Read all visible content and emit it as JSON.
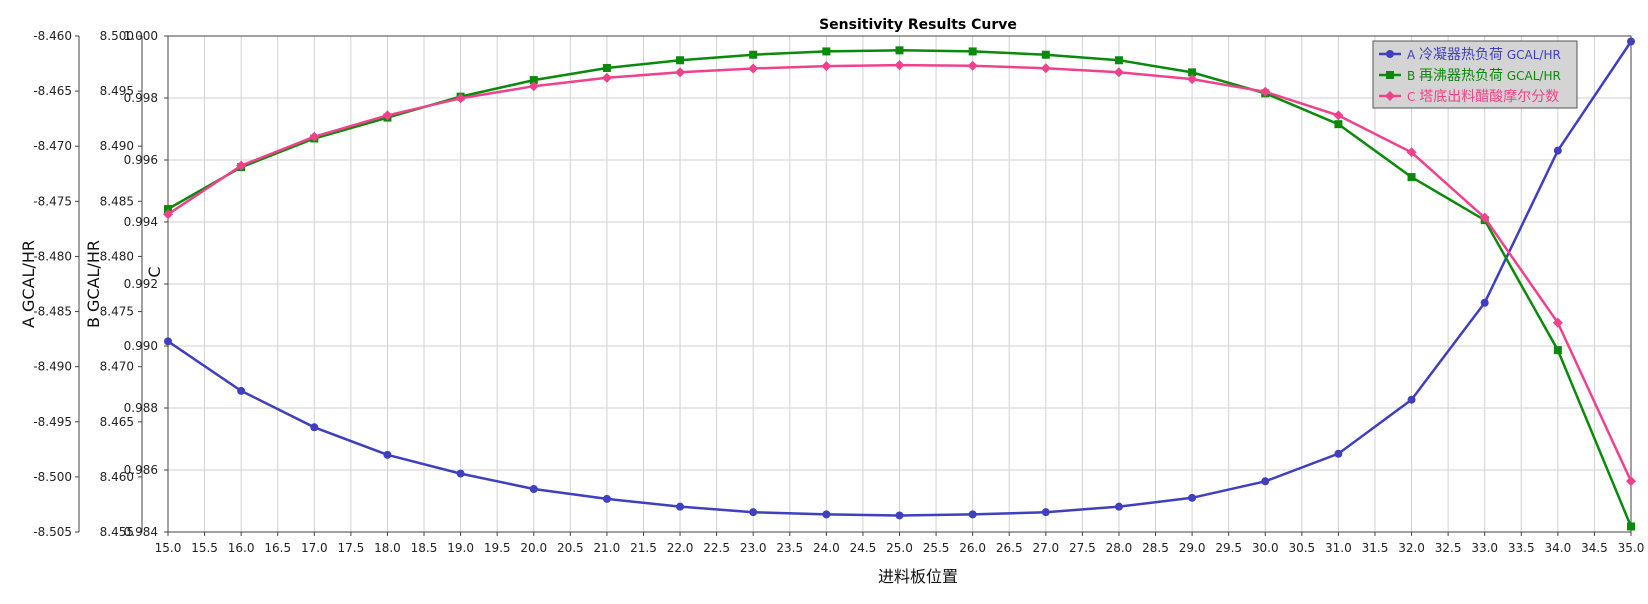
{
  "chart_data": {
    "type": "line",
    "title": "Sensitivity Results Curve",
    "xlabel": "进料板位置",
    "xlim": [
      15.0,
      35.0
    ],
    "x_tick_step": 0.5,
    "x": [
      15,
      16,
      17,
      18,
      19,
      20,
      21,
      22,
      23,
      24,
      25,
      26,
      27,
      28,
      29,
      30,
      31,
      32,
      33,
      34,
      35
    ],
    "legend_position": "top-right",
    "grid": true,
    "axes": [
      {
        "id": "A",
        "label": "A GCAL/HR",
        "ylim": [
          -8.505,
          -8.46
        ],
        "ticks": [
          "-8.460",
          "-8.465",
          "-8.470",
          "-8.475",
          "-8.480",
          "-8.485",
          "-8.490",
          "-8.495",
          "-8.500",
          "-8.505"
        ]
      },
      {
        "id": "B",
        "label": "B GCAL/HR",
        "ylim": [
          8.455,
          8.5
        ],
        "ticks": [
          "8.500",
          "8.495",
          "8.490",
          "8.485",
          "8.480",
          "8.475",
          "8.470",
          "8.465",
          "8.460",
          "8.455"
        ]
      },
      {
        "id": "C",
        "label": "C",
        "ylim": [
          0.984,
          1.0
        ],
        "ticks": [
          "1.000",
          "0.998",
          "0.996",
          "0.994",
          "0.992",
          "0.990",
          "0.988",
          "0.986",
          "0.984"
        ]
      }
    ],
    "series": [
      {
        "axis": "A",
        "prefix": "A",
        "name": "冷凝器热负荷",
        "unit": "GCAL/HR",
        "color": "#3f3fbf",
        "marker": "circle",
        "values": [
          -8.4877,
          -8.4922,
          -8.4955,
          -8.498,
          -8.4997,
          -8.5011,
          -8.502,
          -8.5027,
          -8.5032,
          -8.5034,
          -8.5035,
          -8.5034,
          -8.5032,
          -8.5027,
          -8.5019,
          -8.5004,
          -8.4979,
          -8.493,
          -8.4842,
          -8.4704,
          -8.4605
        ]
      },
      {
        "axis": "B",
        "prefix": "B",
        "name": "再沸器热负荷",
        "unit": "GCAL/HR",
        "color": "#0a8a0a",
        "marker": "square",
        "values": [
          8.4843,
          8.4881,
          8.4907,
          8.4926,
          8.4945,
          8.496,
          8.4971,
          8.4978,
          8.4983,
          8.4986,
          8.4987,
          8.4986,
          8.4983,
          8.4978,
          8.4967,
          8.4948,
          8.492,
          8.4872,
          8.4833,
          8.4715,
          8.4555
        ]
      },
      {
        "axis": "C",
        "prefix": "C",
        "name": "塔底出料醋酸摩尔分数",
        "unit": "",
        "color": "#f0428c",
        "marker": "diamond",
        "values": [
          0.99425,
          0.99582,
          0.99675,
          0.99744,
          0.99799,
          0.99838,
          0.99865,
          0.99883,
          0.99895,
          0.99903,
          0.99906,
          0.99904,
          0.99896,
          0.99883,
          0.99861,
          0.9982,
          0.99744,
          0.99625,
          0.99414,
          0.99075,
          0.98564
        ]
      }
    ]
  }
}
